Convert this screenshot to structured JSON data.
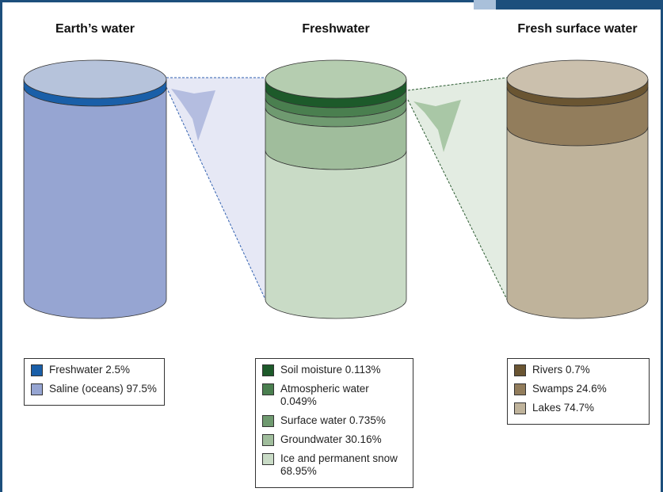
{
  "panels": [
    {
      "title": "Earth’s water",
      "legend": [
        {
          "label": "Freshwater 2.5%",
          "color": "#1a5fa8"
        },
        {
          "label": "Saline (oceans) 97.5%",
          "color": "#96a5d2"
        }
      ]
    },
    {
      "title": "Freshwater",
      "legend": [
        {
          "label": "Soil moisture 0.113%",
          "color": "#1d5a2a"
        },
        {
          "label": "Atmospheric water 0.049%",
          "color": "#4a7f4f"
        },
        {
          "label": "Surface water 0.735%",
          "color": "#6f9a70"
        },
        {
          "label": "Groundwater 30.16%",
          "color": "#a0bd9c"
        },
        {
          "label": "Ice and permanent snow 68.95%",
          "color": "#c9dbc6"
        }
      ]
    },
    {
      "title": "Fresh surface water",
      "legend": [
        {
          "label": "Rivers 0.7%",
          "color": "#6a5532"
        },
        {
          "label": "Swamps 24.6%",
          "color": "#927d5c"
        },
        {
          "label": "Lakes 74.7%",
          "color": "#bfb39b"
        }
      ]
    }
  ]
}
